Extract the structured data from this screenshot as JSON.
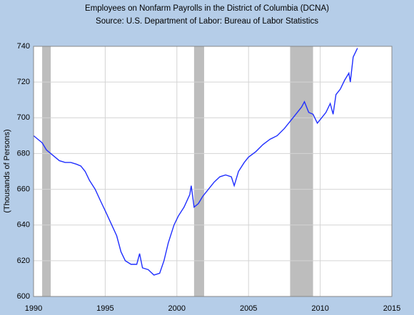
{
  "chart_data": {
    "type": "line",
    "title": "Employees on Nonfarm Payrolls in the District of Columbia (DCNA)",
    "subtitle": "Source: U.S. Department of Labor: Bureau of Labor Statistics",
    "y_label": "(Thousands of Persons)",
    "xlim": [
      1990,
      2015
    ],
    "xticks": [
      1990,
      1995,
      2000,
      2005,
      2010,
      2015
    ],
    "ylim": [
      600,
      740
    ],
    "yticks": [
      600,
      620,
      640,
      660,
      680,
      700,
      720,
      740
    ],
    "grid": true,
    "recessions": [
      [
        1990.6,
        1991.2
      ],
      [
        2001.2,
        2001.9
      ],
      [
        2007.9,
        2009.5
      ]
    ],
    "recession_color": "#bdbdbd",
    "x": [
      1990.0,
      1990.3,
      1990.6,
      1990.9,
      1991.2,
      1991.5,
      1991.8,
      1992.2,
      1992.6,
      1993.0,
      1993.3,
      1993.6,
      1993.9,
      1994.3,
      1994.7,
      1995.0,
      1995.4,
      1995.8,
      1996.1,
      1996.4,
      1996.8,
      1997.2,
      1997.4,
      1997.6,
      1998.0,
      1998.4,
      1998.8,
      1999.1,
      1999.4,
      1999.8,
      2000.1,
      2000.5,
      2000.9,
      2001.0,
      2001.2,
      2001.5,
      2001.8,
      2002.2,
      2002.6,
      2003.0,
      2003.4,
      2003.8,
      2004.0,
      2004.3,
      2004.7,
      2005.0,
      2005.5,
      2006.0,
      2006.5,
      2007.0,
      2007.5,
      2008.0,
      2008.3,
      2008.7,
      2008.9,
      2009.2,
      2009.5,
      2009.8,
      2010.1,
      2010.4,
      2010.7,
      2010.9,
      2011.1,
      2011.4,
      2011.7,
      2012.0,
      2012.1,
      2012.3,
      2012.6
    ],
    "series": [
      {
        "name": "DCNA",
        "color": "#1f2eff",
        "values": [
          690,
          688,
          686,
          682,
          680,
          678,
          676,
          675,
          675,
          674,
          673,
          670,
          665,
          660,
          653,
          648,
          641,
          634,
          625,
          620,
          618,
          618,
          624,
          616,
          615,
          612,
          613,
          620,
          630,
          640,
          645,
          650,
          657,
          662,
          650,
          652,
          656,
          660,
          664,
          667,
          668,
          667,
          662,
          670,
          675,
          678,
          681,
          685,
          688,
          690,
          694,
          699,
          702,
          706,
          709,
          703,
          702,
          697,
          700,
          703,
          708,
          702,
          713,
          716,
          721,
          725,
          720,
          734,
          739
        ]
      }
    ]
  }
}
